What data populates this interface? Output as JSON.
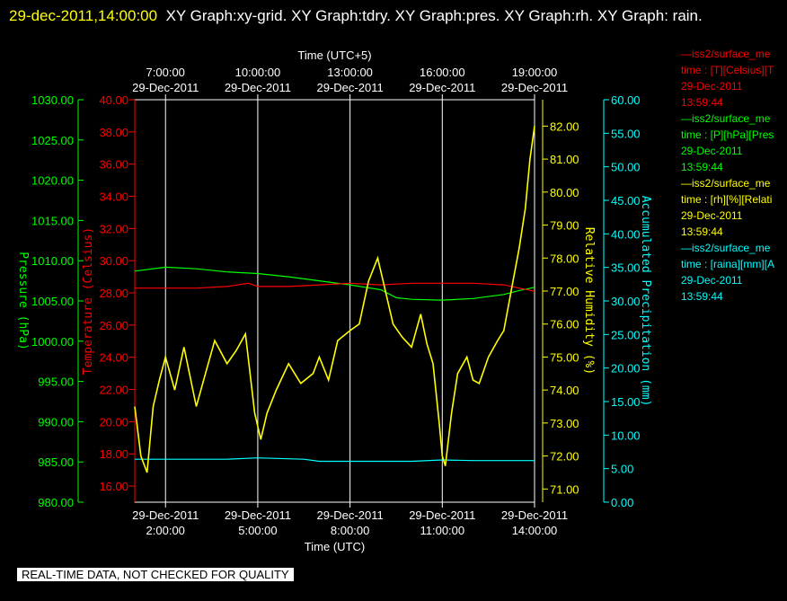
{
  "header": {
    "timestamp": "29-dec-2011,14:00:00",
    "graphs": "XY Graph:xy-grid.  XY Graph:tdry.  XY Graph:pres.  XY Graph:rh.  XY Graph: rain."
  },
  "footer": {
    "note": "REAL-TIME DATA, NOT CHECKED FOR QUALITY"
  },
  "colors": {
    "temperature": "#ff0000",
    "pressure": "#00ff00",
    "humidity": "#ffff00",
    "precipitation": "#00ffff",
    "grid": "#ffffff"
  },
  "legend": [
    {
      "name": "—iss2/surface_me",
      "line2": "time : [T][Celsius][T",
      "line3": "29-Dec-2011",
      "line4": "13:59:44",
      "color": "#ff0000"
    },
    {
      "name": "—iss2/surface_me",
      "line2": "time : [P][hPa][Pres",
      "line3": "29-Dec-2011",
      "line4": "13:59:44",
      "color": "#00ff00"
    },
    {
      "name": "—iss2/surface_me",
      "line2": "time : [rh][%][Relati",
      "line3": "29-Dec-2011",
      "line4": "13:59:44",
      "color": "#ffff00"
    },
    {
      "name": "—iss2/surface_me",
      "line2": "time : [raina][mm][A",
      "line3": "29-Dec-2011",
      "line4": "13:59:44",
      "color": "#00ffff"
    }
  ],
  "chart_data": {
    "type": "line",
    "top_axis": {
      "title": "Time (UTC+5)",
      "ticks": [
        {
          "time": "7:00:00",
          "date": "29-Dec-2011"
        },
        {
          "time": "10:00:00",
          "date": "29-Dec-2011"
        },
        {
          "time": "13:00:00",
          "date": "29-Dec-2011"
        },
        {
          "time": "16:00:00",
          "date": "29-Dec-2011"
        },
        {
          "time": "19:00:00",
          "date": "29-Dec-2011"
        }
      ]
    },
    "bottom_axis": {
      "title": "Time (UTC)",
      "range_hours": [
        1.0,
        14.0
      ],
      "ticks": [
        {
          "hour": 2,
          "date": "29-Dec-2011",
          "time": "2:00:00"
        },
        {
          "hour": 5,
          "date": "29-Dec-2011",
          "time": "5:00:00"
        },
        {
          "hour": 8,
          "date": "29-Dec-2011",
          "time": "8:00:00"
        },
        {
          "hour": 11,
          "date": "29-Dec-2011",
          "time": "11:00:00"
        },
        {
          "hour": 14,
          "date": "29-Dec-2011",
          "time": "14:00:00"
        }
      ]
    },
    "pressure_axis": {
      "label": "Pressure (hPa)",
      "range": [
        980,
        1030
      ],
      "ticks": [
        "980.00",
        "985.00",
        "990.00",
        "995.00",
        "1000.00",
        "1005.00",
        "1010.00",
        "1015.00",
        "1020.00",
        "1025.00",
        "1030.00"
      ]
    },
    "temperature_axis": {
      "label": "Temperature (Celsius)",
      "range": [
        15,
        40
      ],
      "ticks": [
        "16.00",
        "18.00",
        "20.00",
        "22.00",
        "24.00",
        "26.00",
        "28.00",
        "30.00",
        "32.00",
        "34.00",
        "36.00",
        "38.00",
        "40.00"
      ]
    },
    "humidity_axis": {
      "label": "Relative Humidity (%)",
      "range": [
        70.6,
        82.8
      ],
      "ticks": [
        "71.00",
        "72.00",
        "73.00",
        "74.00",
        "75.00",
        "76.00",
        "77.00",
        "78.00",
        "79.00",
        "80.00",
        "81.00",
        "82.00"
      ]
    },
    "precip_axis": {
      "label": "Accumulated Precipitation (mm)",
      "range": [
        0,
        60
      ],
      "ticks": [
        "0.00",
        "5.00",
        "10.00",
        "15.00",
        "20.00",
        "25.00",
        "30.00",
        "35.00",
        "40.00",
        "45.00",
        "50.00",
        "55.00",
        "60.00"
      ]
    },
    "series": [
      {
        "name": "Temperature",
        "axis": "temperature",
        "points": [
          [
            1.0,
            28.3
          ],
          [
            2.0,
            28.3
          ],
          [
            3.0,
            28.3
          ],
          [
            4.0,
            28.4
          ],
          [
            4.7,
            28.6
          ],
          [
            5.0,
            28.4
          ],
          [
            6.0,
            28.4
          ],
          [
            7.0,
            28.5
          ],
          [
            8.0,
            28.6
          ],
          [
            9.0,
            28.5
          ],
          [
            10.0,
            28.6
          ],
          [
            11.0,
            28.6
          ],
          [
            12.0,
            28.6
          ],
          [
            13.0,
            28.5
          ],
          [
            13.5,
            28.3
          ],
          [
            14.0,
            28.1
          ]
        ]
      },
      {
        "name": "Pressure",
        "axis": "pressure",
        "points": [
          [
            1.0,
            1008.7
          ],
          [
            2.0,
            1009.2
          ],
          [
            3.0,
            1009.0
          ],
          [
            4.0,
            1008.6
          ],
          [
            5.0,
            1008.4
          ],
          [
            6.0,
            1008.0
          ],
          [
            7.0,
            1007.5
          ],
          [
            8.0,
            1007.0
          ],
          [
            8.5,
            1006.7
          ],
          [
            9.0,
            1006.4
          ],
          [
            9.5,
            1005.4
          ],
          [
            10.0,
            1005.2
          ],
          [
            11.0,
            1005.1
          ],
          [
            12.0,
            1005.3
          ],
          [
            13.0,
            1005.8
          ],
          [
            13.5,
            1006.3
          ],
          [
            14.0,
            1006.7
          ]
        ]
      },
      {
        "name": "Relative Humidity",
        "axis": "humidity",
        "points": [
          [
            1.0,
            73.5
          ],
          [
            1.2,
            72.0
          ],
          [
            1.4,
            71.5
          ],
          [
            1.6,
            73.5
          ],
          [
            1.8,
            74.3
          ],
          [
            2.0,
            75.0
          ],
          [
            2.3,
            74.0
          ],
          [
            2.6,
            75.3
          ],
          [
            3.0,
            73.5
          ],
          [
            3.3,
            74.5
          ],
          [
            3.6,
            75.5
          ],
          [
            4.0,
            74.8
          ],
          [
            4.3,
            75.2
          ],
          [
            4.6,
            75.7
          ],
          [
            4.9,
            73.3
          ],
          [
            5.1,
            72.5
          ],
          [
            5.3,
            73.3
          ],
          [
            5.6,
            74.0
          ],
          [
            6.0,
            74.8
          ],
          [
            6.4,
            74.2
          ],
          [
            6.8,
            74.5
          ],
          [
            7.0,
            75.0
          ],
          [
            7.3,
            74.3
          ],
          [
            7.6,
            75.5
          ],
          [
            8.0,
            75.8
          ],
          [
            8.3,
            76.0
          ],
          [
            8.6,
            77.3
          ],
          [
            8.9,
            78.0
          ],
          [
            9.1,
            77.2
          ],
          [
            9.4,
            76.0
          ],
          [
            9.7,
            75.6
          ],
          [
            10.0,
            75.3
          ],
          [
            10.3,
            76.3
          ],
          [
            10.5,
            75.4
          ],
          [
            10.7,
            74.8
          ],
          [
            10.9,
            73.0
          ],
          [
            11.0,
            72.0
          ],
          [
            11.1,
            71.7
          ],
          [
            11.3,
            73.3
          ],
          [
            11.5,
            74.5
          ],
          [
            11.8,
            75.0
          ],
          [
            12.0,
            74.3
          ],
          [
            12.2,
            74.2
          ],
          [
            12.5,
            75.0
          ],
          [
            12.8,
            75.5
          ],
          [
            13.0,
            75.8
          ],
          [
            13.3,
            77.3
          ],
          [
            13.5,
            78.3
          ],
          [
            13.7,
            79.5
          ],
          [
            13.85,
            81.0
          ],
          [
            14.0,
            82.0
          ]
        ]
      },
      {
        "name": "Accumulated Precipitation",
        "axis": "precip",
        "points": [
          [
            1.0,
            6.4
          ],
          [
            4.0,
            6.4
          ],
          [
            5.0,
            6.6
          ],
          [
            6.5,
            6.4
          ],
          [
            7.0,
            6.1
          ],
          [
            8.0,
            6.1
          ],
          [
            10.0,
            6.1
          ],
          [
            11.0,
            6.3
          ],
          [
            12.0,
            6.2
          ],
          [
            14.0,
            6.2
          ]
        ]
      }
    ]
  }
}
